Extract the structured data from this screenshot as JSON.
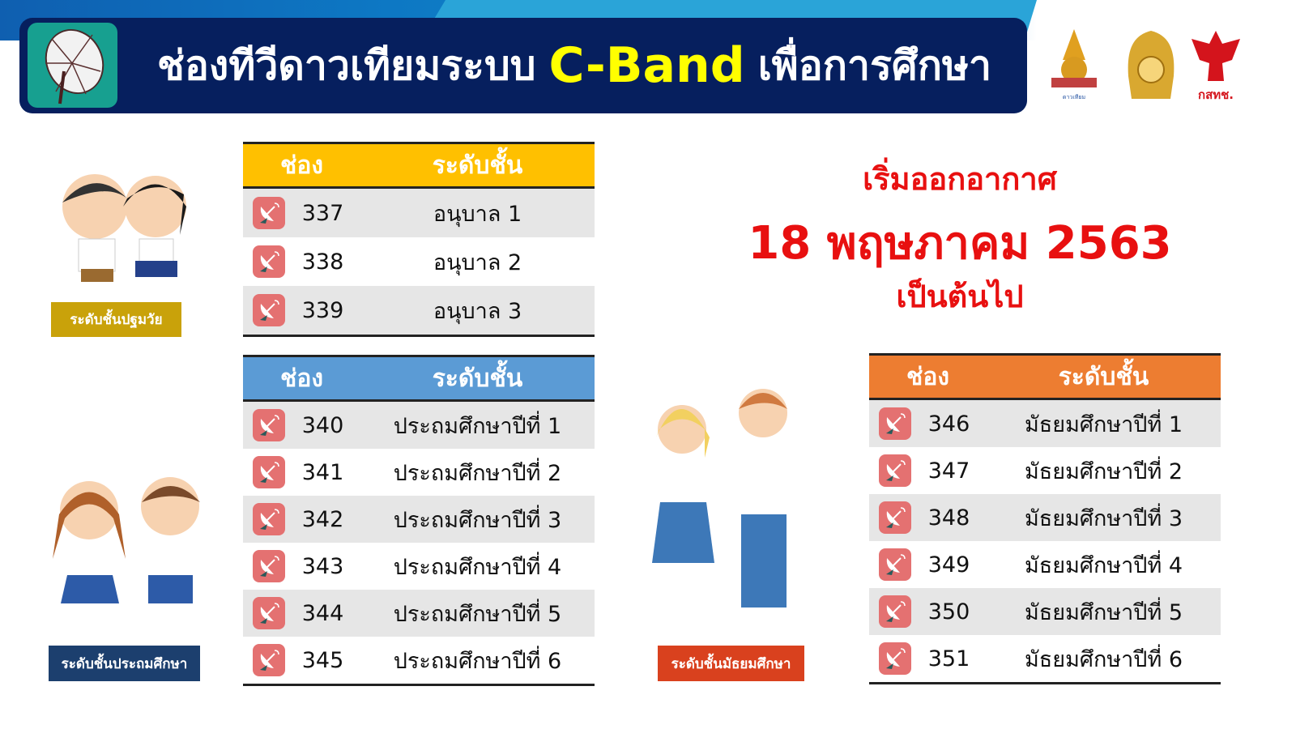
{
  "header": {
    "title_prefix": "ช่องทีวีดาวเทียมระบบ",
    "title_highlight": "C-Band",
    "title_suffix": "เพื่อการศึกษา"
  },
  "logos": [
    "ดาวเทียมเพื่อการศึกษาทางไกล",
    "กระทรวงศึกษาธิการ",
    "กสทช."
  ],
  "columns": {
    "channel": "ช่อง",
    "level": "ระดับชั้น"
  },
  "broadcast": {
    "line1": "เริ่มออกอากาศ",
    "date": "18 พฤษภาคม 2563",
    "line3": "เป็นต้นไป"
  },
  "colors": {
    "header": "#061f5e",
    "highlight": "#ffff00",
    "preschool": "#ffc000",
    "primary": "#5b9bd5",
    "secondary": "#ed7d31",
    "date_text": "#e81010"
  },
  "preschool": {
    "label": "ระดับชั้นปฐมวัย",
    "rows": [
      {
        "ch": "337",
        "lvl": "อนุบาล 1"
      },
      {
        "ch": "338",
        "lvl": "อนุบาล 2"
      },
      {
        "ch": "339",
        "lvl": "อนุบาล 3"
      }
    ]
  },
  "primary": {
    "label": "ระดับชั้นประถมศึกษา",
    "rows": [
      {
        "ch": "340",
        "lvl": "ประถมศึกษาปีที่ 1"
      },
      {
        "ch": "341",
        "lvl": "ประถมศึกษาปีที่ 2"
      },
      {
        "ch": "342",
        "lvl": "ประถมศึกษาปีที่ 3"
      },
      {
        "ch": "343",
        "lvl": "ประถมศึกษาปีที่ 4"
      },
      {
        "ch": "344",
        "lvl": "ประถมศึกษาปีที่ 5"
      },
      {
        "ch": "345",
        "lvl": "ประถมศึกษาปีที่ 6"
      }
    ]
  },
  "secondary": {
    "label": "ระดับชั้นมัธยมศึกษา",
    "rows": [
      {
        "ch": "346",
        "lvl": "มัธยมศึกษาปีที่ 1"
      },
      {
        "ch": "347",
        "lvl": "มัธยมศึกษาปีที่ 2"
      },
      {
        "ch": "348",
        "lvl": "มัธยมศึกษาปีที่ 3"
      },
      {
        "ch": "349",
        "lvl": "มัธยมศึกษาปีที่ 4"
      },
      {
        "ch": "350",
        "lvl": "มัธยมศึกษาปีที่ 5"
      },
      {
        "ch": "351",
        "lvl": "มัธยมศึกษาปีที่ 6"
      }
    ]
  }
}
